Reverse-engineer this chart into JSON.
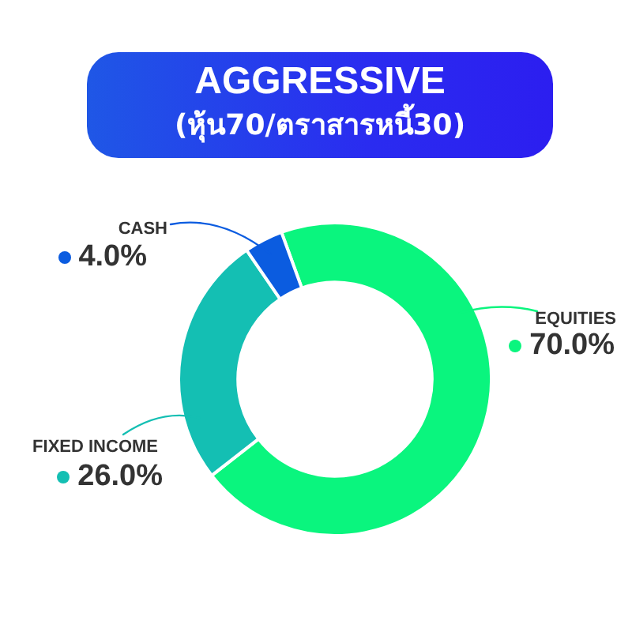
{
  "chart_data": {
    "type": "donut",
    "title": "AGGRESSIVE",
    "subtitle": "(หุ้น70/ตราสารหนี้30)",
    "categories": [
      "EQUITIES",
      "FIXED INCOME",
      "CASH"
    ],
    "values": [
      70,
      26,
      4
    ],
    "colors": [
      "#0af57e",
      "#14bfb3",
      "#0b5ce0"
    ],
    "value_labels": [
      "70.0%",
      "26.0%",
      "4.0%"
    ]
  }
}
